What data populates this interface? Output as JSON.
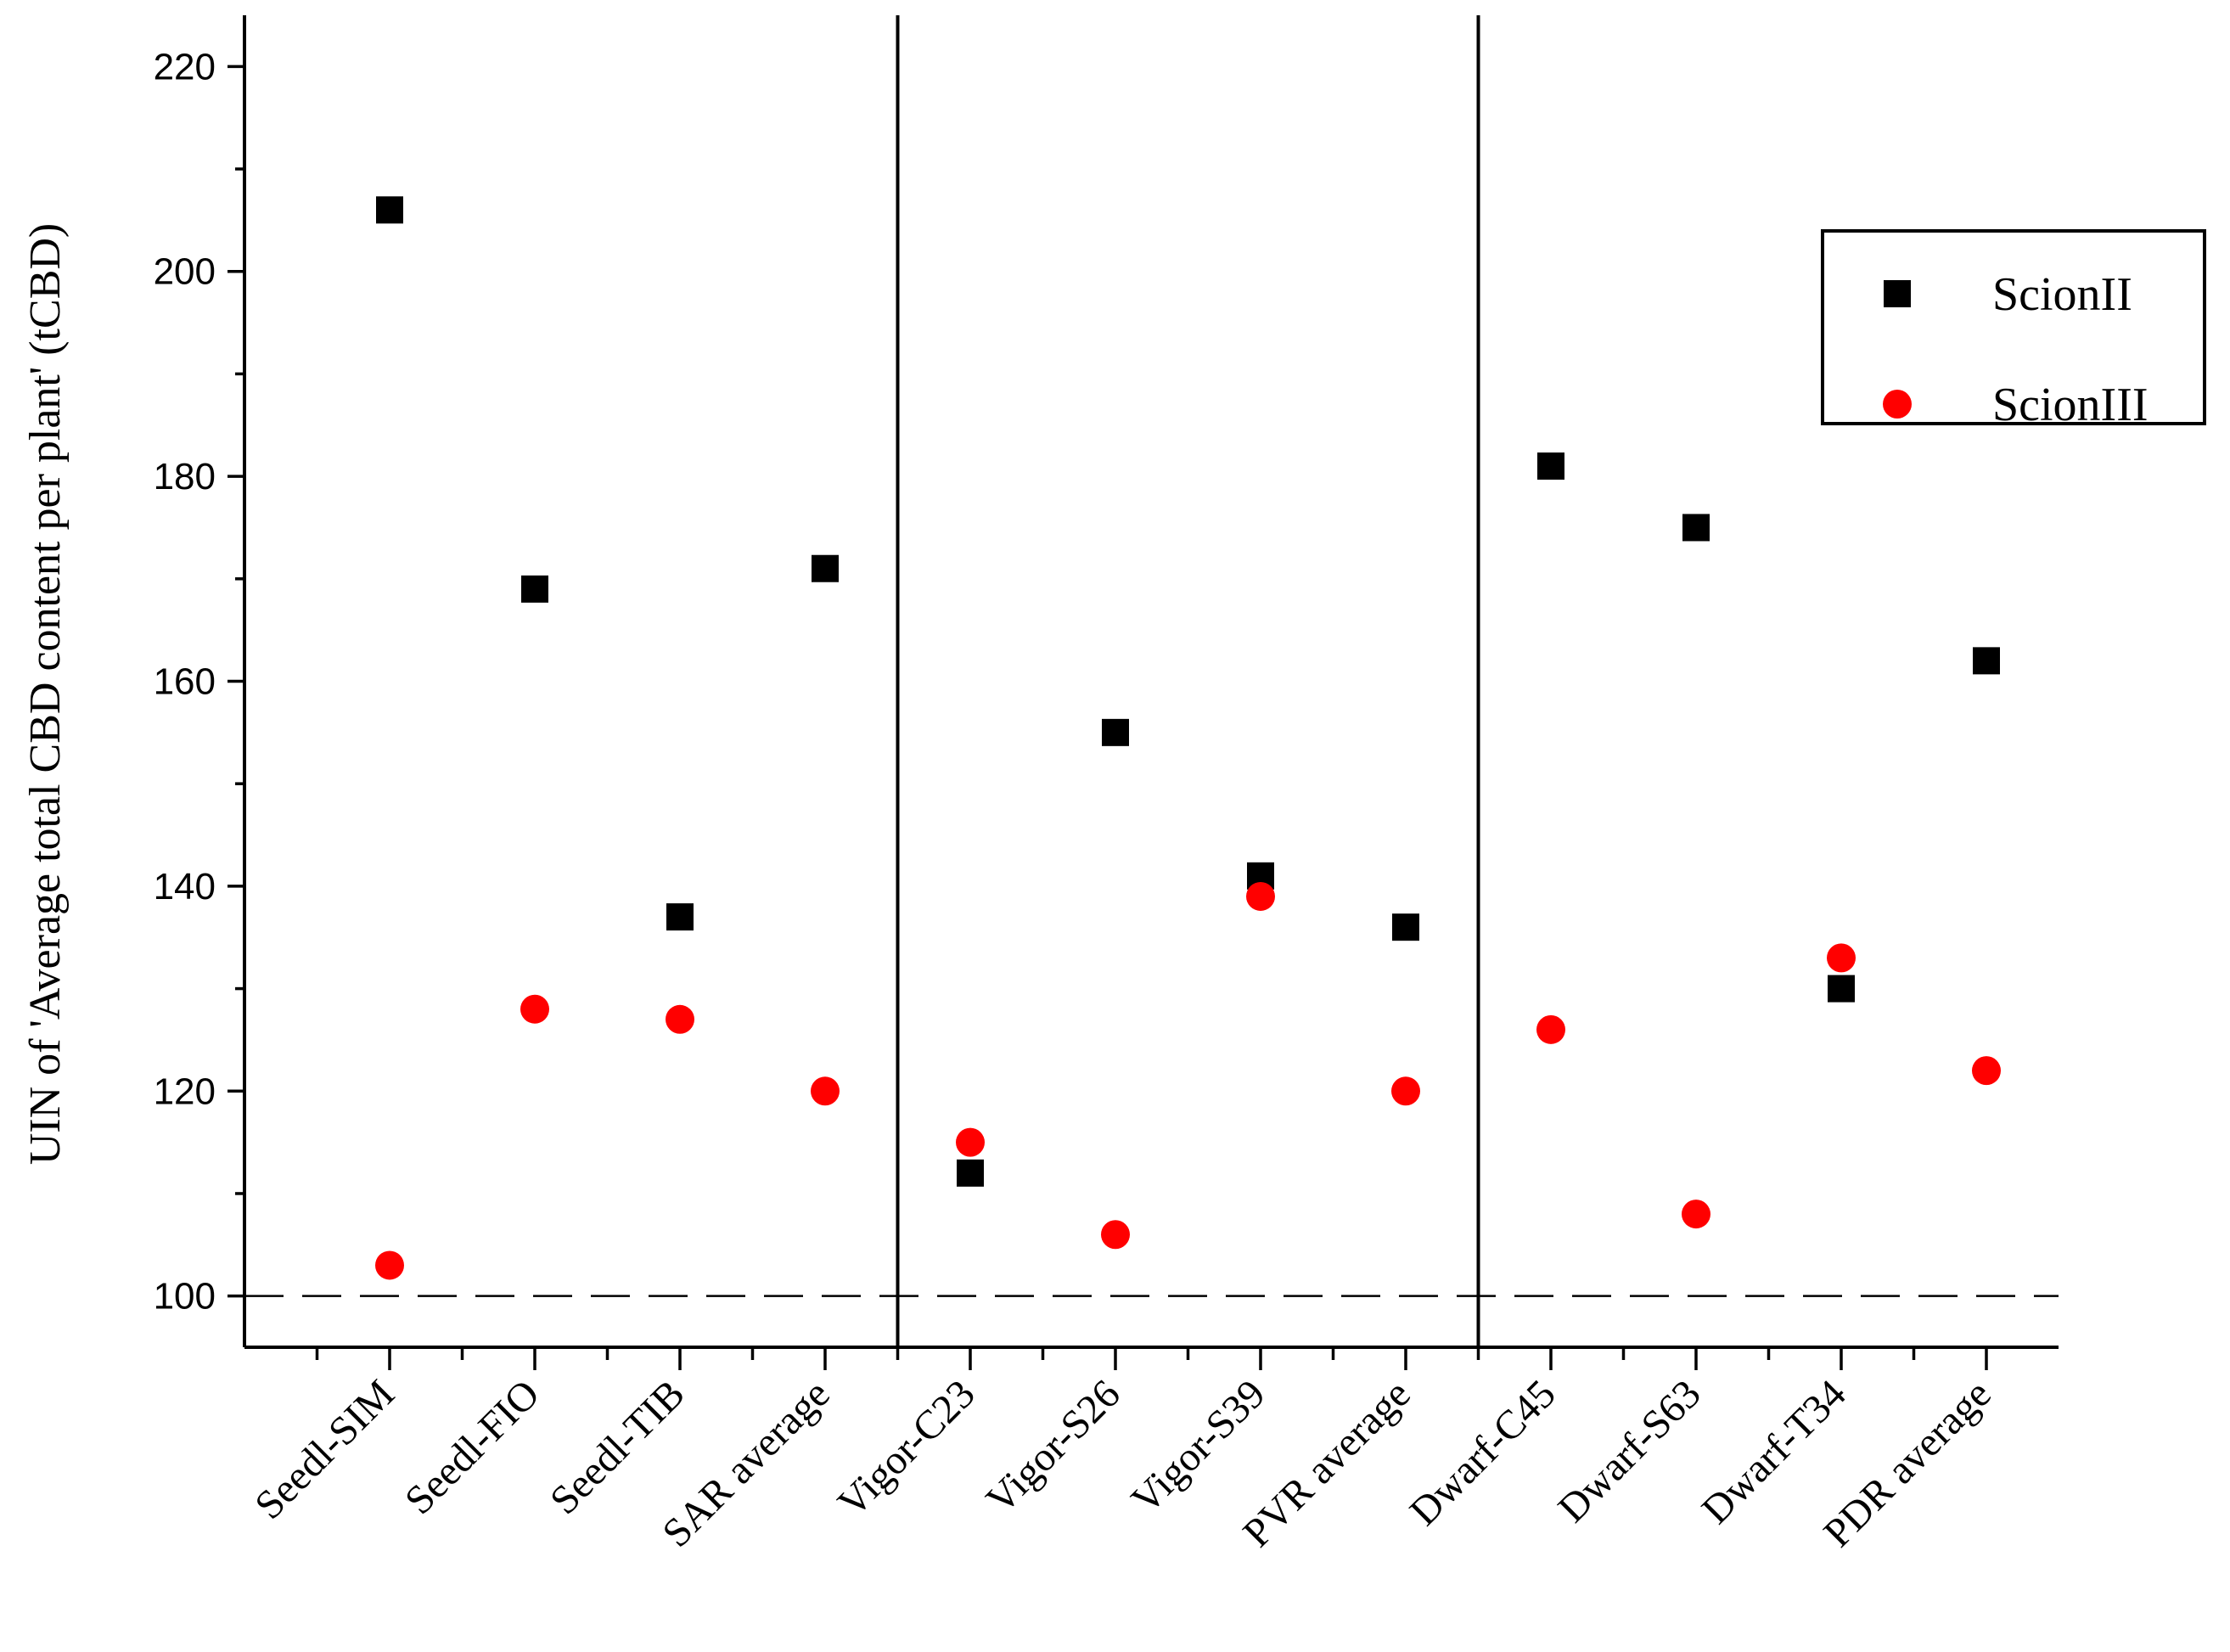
{
  "chart_data": {
    "type": "scatter",
    "title": "",
    "xlabel": "",
    "ylabel": "UIN of 'Average total CBD content per plant' (tCBD)",
    "ylim": [
      95,
      225
    ],
    "yticks": [
      100,
      120,
      140,
      160,
      180,
      200,
      220
    ],
    "categories": [
      "Seedl-SIM",
      "Seedl-FIO",
      "Seedl-TIB",
      "SAR average",
      "Vigor-C23",
      "Vigor-S26",
      "Vigor-S39",
      "PVR average",
      "Dwarf-C45",
      "Dwarf-S63",
      "Dwarf-T34",
      "PDR average"
    ],
    "group_separators_after": [
      4,
      8
    ],
    "reference_line": 100,
    "legend_position": "top-right",
    "series": [
      {
        "name": "ScionII",
        "marker": "square",
        "color": "#000000",
        "values": [
          206,
          169,
          137,
          171,
          112,
          155,
          141,
          136,
          181,
          175,
          130,
          162
        ]
      },
      {
        "name": "ScionIII",
        "marker": "circle",
        "color": "#ff0000",
        "values": [
          103,
          128,
          127,
          120,
          115,
          106,
          139,
          120,
          126,
          108,
          133,
          122
        ]
      }
    ]
  }
}
